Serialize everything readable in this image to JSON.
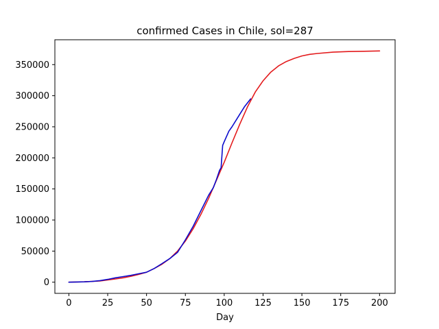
{
  "chart_data": {
    "type": "line",
    "title": "confirmed Cases in Chile, sol=287",
    "xlabel": "Day",
    "ylabel": "",
    "xlim": [
      -9,
      210
    ],
    "ylim": [
      -18000,
      390000
    ],
    "xticks": [
      0,
      25,
      50,
      75,
      100,
      125,
      150,
      175,
      200
    ],
    "yticks": [
      0,
      50000,
      100000,
      150000,
      200000,
      250000,
      300000,
      350000
    ],
    "grid": false,
    "series": [
      {
        "color": "#e31a1c",
        "x": [
          0,
          10,
          20,
          25,
          30,
          35,
          40,
          45,
          50,
          55,
          60,
          65,
          70,
          75,
          80,
          85,
          90,
          95,
          100,
          105,
          110,
          115,
          120,
          125,
          130,
          135,
          140,
          145,
          150,
          155,
          160,
          170,
          180,
          190,
          200
        ],
        "y": [
          0,
          600,
          2000,
          3500,
          5200,
          7000,
          9500,
          12500,
          16000,
          22000,
          29000,
          38000,
          50000,
          66000,
          86000,
          109000,
          135000,
          164000,
          193000,
          224000,
          254000,
          282000,
          306000,
          324000,
          338000,
          348000,
          355000,
          360000,
          364000,
          366500,
          368000,
          370000,
          371000,
          371500,
          372000
        ]
      },
      {
        "color": "#0a0acc",
        "x": [
          0,
          10,
          15,
          20,
          25,
          30,
          35,
          40,
          45,
          50,
          55,
          60,
          65,
          70,
          75,
          80,
          85,
          90,
          93,
          95,
          97,
          98,
          99,
          100,
          103,
          105,
          108,
          110,
          113,
          117
        ],
        "y": [
          0,
          500,
          1200,
          2500,
          4500,
          7000,
          9000,
          11000,
          13500,
          16000,
          22000,
          30000,
          38000,
          48000,
          68000,
          90000,
          115000,
          140000,
          152000,
          165000,
          180000,
          184000,
          220000,
          226000,
          243000,
          250000,
          262000,
          270000,
          282000,
          295000
        ]
      }
    ]
  }
}
